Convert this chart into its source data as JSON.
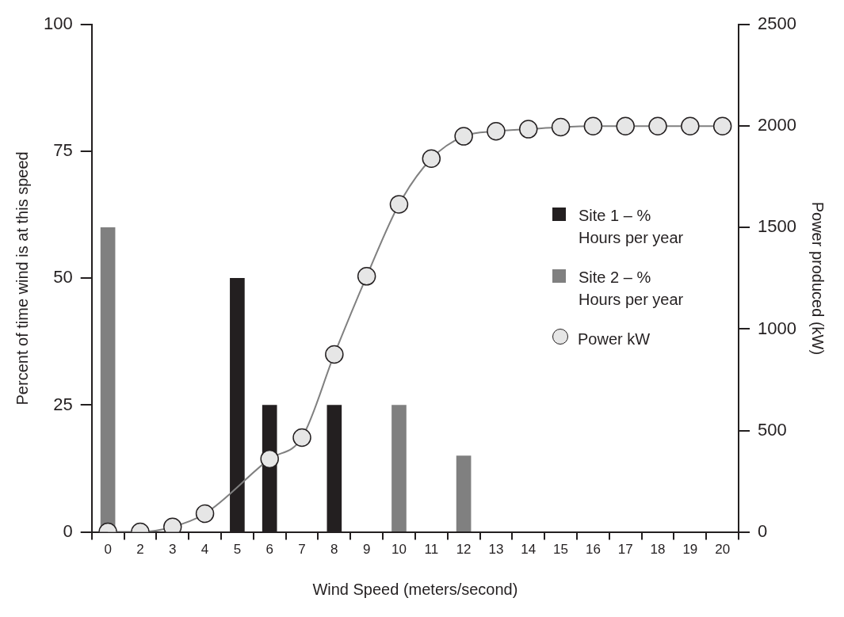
{
  "chart_data": {
    "type": "bar",
    "xlabel": "Wind Speed (meters/second)",
    "ylabel": "Percent of time wind is at this speed",
    "y2label": "Power produced (kW)",
    "categories": [
      "0",
      "2",
      "3",
      "4",
      "5",
      "6",
      "7",
      "8",
      "9",
      "10",
      "11",
      "12",
      "13",
      "14",
      "15",
      "16",
      "17",
      "18",
      "19",
      "20"
    ],
    "series": [
      {
        "name": "Site 1 – % Hours per year",
        "color": "#231f20",
        "values": [
          null,
          null,
          null,
          null,
          50,
          25,
          null,
          25,
          null,
          null,
          null,
          null,
          null,
          null,
          null,
          null,
          null,
          null,
          null,
          null
        ]
      },
      {
        "name": "Site 2 – % Hours per year",
        "color": "#808080",
        "values": [
          60,
          null,
          null,
          null,
          null,
          null,
          null,
          null,
          null,
          25,
          null,
          15,
          null,
          null,
          null,
          null,
          null,
          null,
          null,
          null
        ]
      },
      {
        "name": "Power kW",
        "type": "line",
        "axis": "y2",
        "color": "#808080",
        "marker": "circle",
        "values": [
          0,
          0,
          25,
          90,
          null,
          360,
          465,
          875,
          1260,
          1615,
          1840,
          1950,
          1975,
          1985,
          1995,
          2000,
          2000,
          2000,
          2000,
          2000
        ]
      }
    ],
    "ylim": [
      0,
      100
    ],
    "yticks": [
      0,
      25,
      50,
      75,
      100
    ],
    "y2lim": [
      0,
      2500
    ],
    "y2ticks": [
      0,
      500,
      1000,
      1500,
      2000,
      2500
    ],
    "grid": false,
    "legend": "right"
  }
}
